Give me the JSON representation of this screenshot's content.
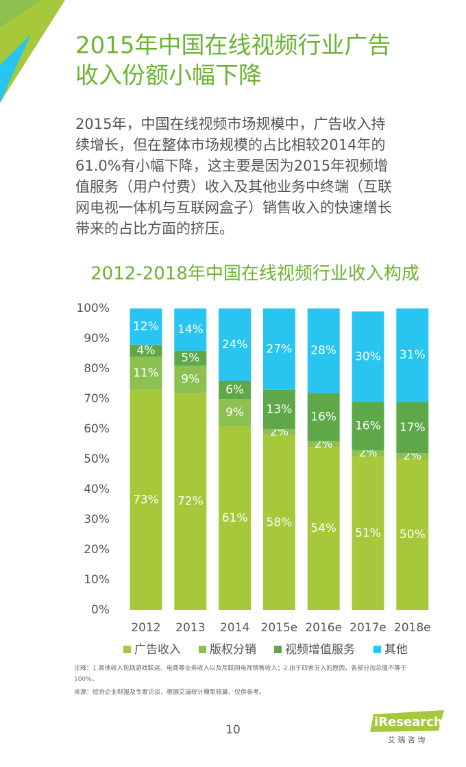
{
  "header": {
    "title_lines": [
      "2015年中国在线视频行业广告",
      "收入份额小幅下降"
    ]
  },
  "paragraph": {
    "lines": [
      "2015年，中国在线视频市场规模中，广告收入持",
      "续增长，但在整体市场规模的占比相较2014年的",
      "61.0%有小幅下降，这主要是因为2015年视频增",
      "值服务（用户付费）收入及其他业务中终端（互联",
      "网电视一体机与互联网盒子）销售收入的快速增长",
      "带来的占比方面的挤压。"
    ]
  },
  "chart_data": {
    "type": "bar",
    "stacked": true,
    "title": "2012-2018年中国在线视频行业收入构成",
    "categories": [
      "2012",
      "2013",
      "2014",
      "2015e",
      "2016e",
      "2017e",
      "2018e"
    ],
    "series": [
      {
        "name": "广告收入",
        "color": "#a5c93a",
        "values": [
          73,
          72,
          61,
          58,
          54,
          51,
          50
        ],
        "value_labels": [
          "73%",
          "72%",
          "61%",
          "58%",
          "54%",
          "51%",
          "50%"
        ]
      },
      {
        "name": "版权分销",
        "color": "#8cc152",
        "values": [
          11,
          9,
          9,
          2,
          2,
          2,
          2
        ],
        "value_labels": [
          "11%",
          "9%",
          "9%",
          "2%",
          "2%",
          "2%",
          "2%"
        ]
      },
      {
        "name": "视频增值服务",
        "color": "#5ea84a",
        "values": [
          4,
          5,
          6,
          13,
          16,
          16,
          17
        ],
        "value_labels": [
          "4%",
          "5%",
          "6%",
          "13%",
          "16%",
          "16%",
          "17%"
        ]
      },
      {
        "name": "其他",
        "color": "#27c5f0",
        "values": [
          12,
          14,
          24,
          27,
          28,
          30,
          31
        ],
        "value_labels": [
          "12%",
          "14%",
          "24%",
          "27%",
          "28%",
          "30%",
          "31%"
        ]
      }
    ],
    "ylim": [
      0,
      100
    ],
    "yticks": [
      {
        "value": 0,
        "label": "0%"
      },
      {
        "value": 10,
        "label": "10%"
      },
      {
        "value": 20,
        "label": "20%"
      },
      {
        "value": 30,
        "label": "30%"
      },
      {
        "value": 40,
        "label": "40%"
      },
      {
        "value": 50,
        "label": "50%"
      },
      {
        "value": 60,
        "label": "60%"
      },
      {
        "value": 70,
        "label": "70%"
      },
      {
        "value": 80,
        "label": "80%"
      },
      {
        "value": 90,
        "label": "90%"
      },
      {
        "value": 100,
        "label": "100%"
      }
    ],
    "legend": "bottom"
  },
  "notes": [
    "注释：1.其他收入包括游戏联运、电商等业务收入以及互联网电视销售收入；2.由于四舍五入的原因，各部分加总值不等于",
    "100%。"
  ],
  "source": "来源：综合企业财报及专家访谈，根据艾瑞统计模型核算，仅供参考。",
  "page_number": "10",
  "logo": {
    "name": "iResearch",
    "subtitle": "艾 瑞 咨 询"
  }
}
